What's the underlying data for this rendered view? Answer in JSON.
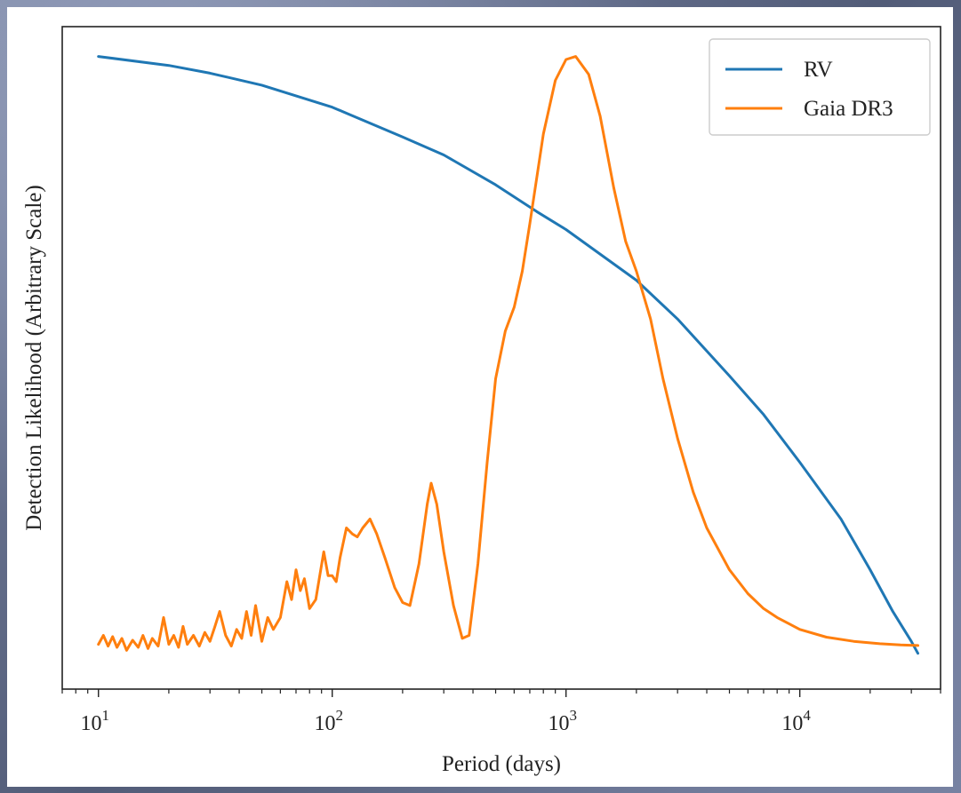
{
  "chart_data": {
    "type": "line",
    "title": "",
    "xlabel": "Period (days)",
    "ylabel": "Detection Likelihood (Arbitrary Scale)",
    "x_scale": "log",
    "xlim": [
      7,
      40000
    ],
    "ylim": [
      -0.06,
      1.05
    ],
    "y_ticks_shown": false,
    "grid": false,
    "legend_position": "top-right",
    "x_ticks": [
      {
        "value": 10,
        "base": "10",
        "exp": "1"
      },
      {
        "value": 100,
        "base": "10",
        "exp": "2"
      },
      {
        "value": 1000,
        "base": "10",
        "exp": "3"
      },
      {
        "value": 10000,
        "base": "10",
        "exp": "4"
      }
    ],
    "series": [
      {
        "name": "RV",
        "color": "#1f77b4",
        "points": [
          [
            10,
            1.0
          ],
          [
            20,
            0.985
          ],
          [
            30,
            0.972
          ],
          [
            50,
            0.952
          ],
          [
            100,
            0.915
          ],
          [
            200,
            0.865
          ],
          [
            300,
            0.835
          ],
          [
            500,
            0.785
          ],
          [
            750,
            0.74
          ],
          [
            1000,
            0.71
          ],
          [
            2000,
            0.625
          ],
          [
            3000,
            0.56
          ],
          [
            5000,
            0.465
          ],
          [
            7000,
            0.4
          ],
          [
            10000,
            0.32
          ],
          [
            15000,
            0.225
          ],
          [
            20000,
            0.14
          ],
          [
            25000,
            0.07
          ],
          [
            30000,
            0.02
          ],
          [
            32000,
            0.0
          ]
        ]
      },
      {
        "name": "Gaia DR3",
        "color": "#ff7f0e",
        "points": [
          [
            10,
            0.015
          ],
          [
            10.5,
            0.03
          ],
          [
            11,
            0.012
          ],
          [
            11.5,
            0.028
          ],
          [
            12,
            0.01
          ],
          [
            12.6,
            0.025
          ],
          [
            13.2,
            0.005
          ],
          [
            14,
            0.022
          ],
          [
            14.8,
            0.01
          ],
          [
            15.5,
            0.03
          ],
          [
            16.3,
            0.008
          ],
          [
            17,
            0.025
          ],
          [
            18,
            0.012
          ],
          [
            19,
            0.06
          ],
          [
            20,
            0.015
          ],
          [
            21,
            0.03
          ],
          [
            22,
            0.01
          ],
          [
            23,
            0.045
          ],
          [
            24,
            0.015
          ],
          [
            25.5,
            0.03
          ],
          [
            27,
            0.012
          ],
          [
            28.5,
            0.035
          ],
          [
            30,
            0.02
          ],
          [
            31.5,
            0.045
          ],
          [
            33,
            0.07
          ],
          [
            35,
            0.03
          ],
          [
            37,
            0.012
          ],
          [
            39,
            0.04
          ],
          [
            41,
            0.025
          ],
          [
            43,
            0.07
          ],
          [
            45,
            0.03
          ],
          [
            47,
            0.08
          ],
          [
            50,
            0.02
          ],
          [
            53,
            0.06
          ],
          [
            56,
            0.04
          ],
          [
            60,
            0.06
          ],
          [
            64,
            0.12
          ],
          [
            67,
            0.09
          ],
          [
            70,
            0.14
          ],
          [
            73,
            0.105
          ],
          [
            76,
            0.125
          ],
          [
            80,
            0.075
          ],
          [
            85,
            0.09
          ],
          [
            88,
            0.125
          ],
          [
            92,
            0.17
          ],
          [
            96,
            0.13
          ],
          [
            100,
            0.13
          ],
          [
            104,
            0.12
          ],
          [
            108,
            0.16
          ],
          [
            115,
            0.21
          ],
          [
            122,
            0.2
          ],
          [
            128,
            0.195
          ],
          [
            135,
            0.21
          ],
          [
            145,
            0.225
          ],
          [
            155,
            0.2
          ],
          [
            168,
            0.16
          ],
          [
            185,
            0.11
          ],
          [
            200,
            0.085
          ],
          [
            215,
            0.08
          ],
          [
            235,
            0.15
          ],
          [
            255,
            0.25
          ],
          [
            265,
            0.285
          ],
          [
            280,
            0.25
          ],
          [
            300,
            0.17
          ],
          [
            330,
            0.08
          ],
          [
            360,
            0.025
          ],
          [
            385,
            0.03
          ],
          [
            420,
            0.15
          ],
          [
            460,
            0.32
          ],
          [
            500,
            0.46
          ],
          [
            550,
            0.54
          ],
          [
            600,
            0.58
          ],
          [
            650,
            0.64
          ],
          [
            700,
            0.72
          ],
          [
            800,
            0.87
          ],
          [
            900,
            0.96
          ],
          [
            1000,
            0.995
          ],
          [
            1100,
            1.0
          ],
          [
            1250,
            0.97
          ],
          [
            1400,
            0.9
          ],
          [
            1600,
            0.78
          ],
          [
            1800,
            0.69
          ],
          [
            2000,
            0.64
          ],
          [
            2300,
            0.56
          ],
          [
            2600,
            0.46
          ],
          [
            3000,
            0.36
          ],
          [
            3500,
            0.27
          ],
          [
            4000,
            0.21
          ],
          [
            5000,
            0.14
          ],
          [
            6000,
            0.1
          ],
          [
            7000,
            0.075
          ],
          [
            8000,
            0.06
          ],
          [
            10000,
            0.04
          ],
          [
            13000,
            0.027
          ],
          [
            17000,
            0.02
          ],
          [
            22000,
            0.016
          ],
          [
            27000,
            0.014
          ],
          [
            32000,
            0.013
          ]
        ]
      }
    ]
  }
}
